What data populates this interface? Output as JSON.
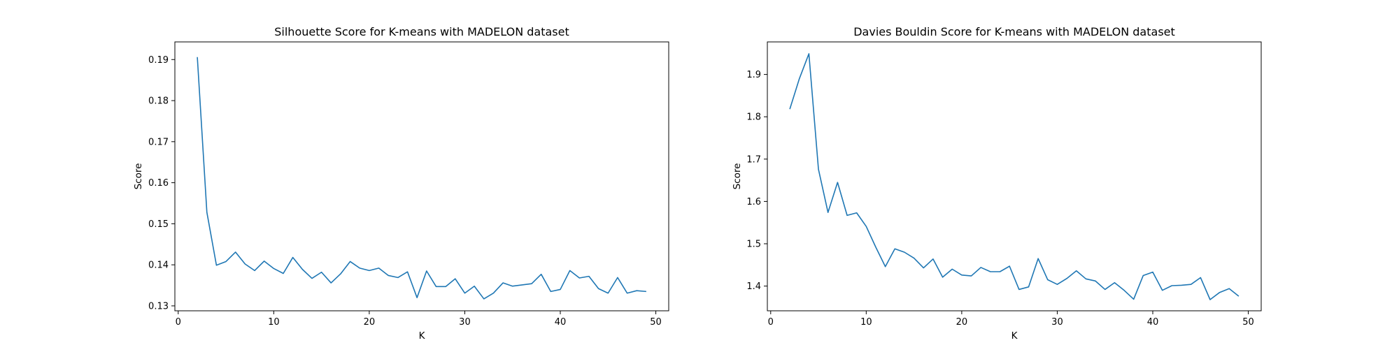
{
  "chart_data": [
    {
      "type": "line",
      "title": "Silhouette Score for K-means with MADELON dataset",
      "xlabel": "K",
      "ylabel": "Score",
      "xlim": [
        -0.35,
        51.35
      ],
      "ylim": [
        0.1288,
        0.1943
      ],
      "xticks": [
        0,
        10,
        20,
        30,
        40,
        50
      ],
      "yticks": [
        0.13,
        0.14,
        0.15,
        0.16,
        0.17,
        0.18,
        0.19
      ],
      "ytick_decimals": 2,
      "grid": false,
      "series": [
        {
          "color": "#1f77b4",
          "x": [
            2,
            3,
            4,
            5,
            6,
            7,
            8,
            9,
            10,
            11,
            12,
            13,
            14,
            15,
            16,
            17,
            18,
            19,
            20,
            21,
            22,
            23,
            24,
            25,
            26,
            27,
            28,
            29,
            30,
            31,
            32,
            33,
            34,
            35,
            36,
            37,
            38,
            39,
            40,
            41,
            42,
            43,
            44,
            45,
            46,
            47,
            48,
            49
          ],
          "values": [
            0.1906,
            0.1528,
            0.1399,
            0.1408,
            0.1431,
            0.1402,
            0.1386,
            0.1409,
            0.1391,
            0.1379,
            0.1418,
            0.1389,
            0.1367,
            0.1382,
            0.1356,
            0.1378,
            0.1408,
            0.1392,
            0.1386,
            0.1392,
            0.1374,
            0.1369,
            0.1383,
            0.132,
            0.1385,
            0.1347,
            0.1347,
            0.1366,
            0.1331,
            0.1348,
            0.1317,
            0.1331,
            0.1356,
            0.1348,
            0.1351,
            0.1354,
            0.1377,
            0.1335,
            0.134,
            0.1386,
            0.1368,
            0.1372,
            0.1342,
            0.1331,
            0.1369,
            0.1331,
            0.1337,
            0.1335
          ]
        }
      ]
    },
    {
      "type": "line",
      "title": "Davies Bouldin Score for K-means with MADELON dataset",
      "xlabel": "K",
      "ylabel": "Score",
      "xlim": [
        -0.35,
        51.35
      ],
      "ylim": [
        1.3416,
        1.9769
      ],
      "xticks": [
        0,
        10,
        20,
        30,
        40,
        50
      ],
      "yticks": [
        1.4,
        1.5,
        1.6,
        1.7,
        1.8,
        1.9
      ],
      "ytick_decimals": 1,
      "grid": false,
      "series": [
        {
          "color": "#1f77b4",
          "x": [
            2,
            3,
            4,
            5,
            6,
            7,
            8,
            9,
            10,
            11,
            12,
            13,
            14,
            15,
            16,
            17,
            18,
            19,
            20,
            21,
            22,
            23,
            24,
            25,
            26,
            27,
            28,
            29,
            30,
            31,
            32,
            33,
            34,
            35,
            36,
            37,
            38,
            39,
            40,
            41,
            42,
            43,
            44,
            45,
            46,
            47,
            48,
            49
          ],
          "values": [
            1.818,
            1.89,
            1.949,
            1.676,
            1.574,
            1.645,
            1.567,
            1.573,
            1.541,
            1.492,
            1.446,
            1.488,
            1.48,
            1.466,
            1.443,
            1.464,
            1.421,
            1.44,
            1.426,
            1.424,
            1.444,
            1.434,
            1.434,
            1.447,
            1.392,
            1.398,
            1.465,
            1.415,
            1.404,
            1.418,
            1.436,
            1.417,
            1.412,
            1.392,
            1.408,
            1.39,
            1.369,
            1.425,
            1.433,
            1.39,
            1.401,
            1.402,
            1.404,
            1.42,
            1.368,
            1.385,
            1.394,
            1.376
          ]
        }
      ]
    }
  ]
}
